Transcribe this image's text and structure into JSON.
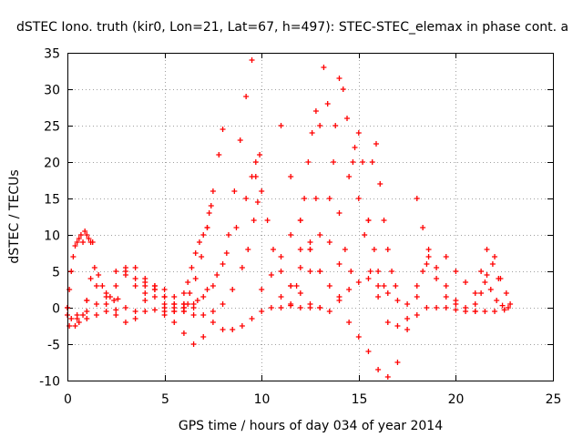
{
  "chart_data": {
    "type": "scatter",
    "title": "dSTEC Iono. truth (kir0, Lon=21, Lat=67, h=497): STEC-STEC_elemax in phase cont. a",
    "xlabel": "GPS time / hours of day 034 of year 2014",
    "ylabel": "dSTEC  / TECUs",
    "xlim": [
      0,
      25
    ],
    "ylim": [
      -10,
      35
    ],
    "xticks": [
      0,
      5,
      10,
      15,
      20,
      25
    ],
    "yticks": [
      -10,
      -5,
      0,
      5,
      10,
      15,
      20,
      25,
      30,
      35
    ],
    "grid": true,
    "marker": "plus",
    "color": "#ff0000",
    "series": [
      {
        "x": [
          0.0,
          0.1,
          0.2,
          0.3,
          0.4,
          0.5,
          0.6,
          0.7,
          0.8,
          0.9,
          1.0,
          1.1,
          1.2,
          1.3
        ],
        "y": [
          0.0,
          2.5,
          5.0,
          7.0,
          8.5,
          9.0,
          9.5,
          10.0,
          9.0,
          10.5,
          10.0,
          9.5,
          9.0,
          9.0
        ]
      },
      {
        "x": [
          0.0,
          0.2,
          0.4,
          0.6,
          0.8,
          1.0,
          1.2,
          1.4,
          1.6,
          1.8,
          2.0,
          2.2,
          2.4,
          2.6
        ],
        "y": [
          0.0,
          -1.5,
          -2.5,
          -2.0,
          -1.0,
          1.0,
          4.0,
          5.5,
          4.5,
          3.0,
          2.0,
          1.5,
          1.0,
          1.2
        ]
      },
      {
        "x": [
          0.1,
          0.5,
          1.0,
          1.5,
          2.0,
          2.5,
          3.0,
          3.5,
          4.0,
          4.5,
          5.0,
          5.5,
          6.0,
          6.5,
          7.0,
          7.5
        ],
        "y": [
          -2.5,
          -1.0,
          1.0,
          3.0,
          1.5,
          -1.0,
          -2.0,
          -1.5,
          1.0,
          2.5,
          0.0,
          -2.0,
          -3.5,
          -5.0,
          -4.0,
          -2.0
        ]
      },
      {
        "x": [
          0.0,
          0.5,
          1.0,
          1.5,
          2.0,
          2.5,
          3.0,
          3.5,
          4.0,
          4.5,
          5.0,
          5.5,
          6.0,
          6.5
        ],
        "y": [
          -1.0,
          -1.5,
          -0.5,
          0.5,
          -0.5,
          -0.3,
          0.0,
          -0.5,
          -0.5,
          -0.3,
          -0.5,
          -0.5,
          0.0,
          0.0
        ]
      },
      {
        "x": [
          1.0,
          1.5,
          2.0,
          2.5,
          3.0,
          3.5,
          4.0,
          4.5,
          5.0,
          5.5,
          6.0,
          6.5
        ],
        "y": [
          -1.5,
          -1.0,
          0.5,
          3.0,
          5.0,
          5.5,
          3.5,
          2.5,
          1.5,
          0.5,
          -0.5,
          -1.0
        ]
      },
      {
        "x": [
          2.5,
          3.0,
          3.5,
          4.0,
          4.5,
          5.0,
          5.5,
          6.0
        ],
        "y": [
          5.0,
          4.5,
          3.0,
          2.0,
          1.5,
          0.5,
          0.0,
          -0.5
        ]
      },
      {
        "x": [
          3.0,
          3.5,
          4.0,
          4.5,
          5.0,
          5.5,
          6.0
        ],
        "y": [
          5.5,
          4.0,
          3.0,
          3.0,
          2.5,
          1.5,
          0.5
        ]
      },
      {
        "x": [
          4.0,
          4.5,
          5.0,
          5.5,
          6.0,
          6.2,
          6.4,
          6.6,
          6.8,
          7.0,
          7.2,
          7.3,
          7.4
        ],
        "y": [
          4.0,
          3.0,
          1.5,
          0.5,
          2.0,
          3.5,
          5.5,
          7.5,
          9.0,
          10.0,
          11.0,
          13.0,
          14.0
        ]
      },
      {
        "x": [
          5.0,
          5.5,
          6.0,
          6.3,
          6.6,
          6.9,
          7.2,
          7.5,
          7.8,
          8.0
        ],
        "y": [
          -1.0,
          -0.5,
          0.5,
          2.0,
          4.0,
          7.0,
          11.0,
          16.0,
          21.0,
          24.5
        ]
      },
      {
        "x": [
          6.0,
          6.5,
          7.0,
          7.5,
          8.0,
          8.3,
          8.6,
          8.9,
          9.2,
          9.5
        ],
        "y": [
          0.0,
          0.5,
          1.5,
          3.0,
          6.0,
          10.0,
          16.0,
          23.0,
          29.0,
          34.0
        ]
      },
      {
        "x": [
          6.2,
          6.7,
          7.2,
          7.7,
          8.2,
          8.7,
          9.2,
          9.5,
          9.7,
          9.9
        ],
        "y": [
          0.5,
          1.0,
          2.5,
          4.5,
          7.5,
          11.0,
          15.0,
          18.0,
          20.0,
          21.0
        ]
      },
      {
        "x": [
          7.0,
          7.5,
          8.0,
          8.5,
          9.0,
          9.3,
          9.6,
          9.8
        ],
        "y": [
          -1.0,
          -0.5,
          0.5,
          2.5,
          5.5,
          8.0,
          12.0,
          14.5
        ]
      },
      {
        "x": [
          8.0,
          8.5,
          9.0,
          9.5,
          10.0,
          10.5,
          11.0,
          11.5,
          12.0,
          12.5,
          13.0,
          13.5
        ],
        "y": [
          -3.0,
          -3.0,
          -2.5,
          -1.5,
          -0.5,
          0.0,
          0.0,
          0.3,
          0.0,
          0.0,
          0.0,
          -0.5
        ]
      },
      {
        "x": [
          9.7,
          10.0,
          10.3,
          10.6,
          11.0,
          11.5,
          12.0,
          12.5,
          13.0
        ],
        "y": [
          18.0,
          16.0,
          12.0,
          8.0,
          5.0,
          3.0,
          2.0,
          0.5,
          0.0
        ]
      },
      {
        "x": [
          10.0,
          10.5,
          11.0,
          11.5,
          12.0,
          12.5,
          13.0
        ],
        "y": [
          2.5,
          4.5,
          7.0,
          10.0,
          12.0,
          9.0,
          5.0
        ]
      },
      {
        "x": [
          11.0,
          11.5,
          12.0,
          12.5,
          13.0,
          13.5,
          14.0
        ],
        "y": [
          25.0,
          18.0,
          12.0,
          8.0,
          5.0,
          3.0,
          1.5
        ]
      },
      {
        "x": [
          11.5,
          11.8,
          12.0,
          12.2,
          12.4,
          12.6,
          12.8
        ],
        "y": [
          0.5,
          3.0,
          8.0,
          15.0,
          20.0,
          24.0,
          27.0
        ]
      },
      {
        "x": [
          11.0,
          11.5,
          12.0,
          12.5,
          13.0,
          13.5,
          14.0
        ],
        "y": [
          1.5,
          3.0,
          5.5,
          8.0,
          10.0,
          9.0,
          6.0
        ]
      },
      {
        "x": [
          12.5,
          12.8,
          13.0,
          13.2,
          13.4,
          13.7,
          14.0,
          14.3,
          14.6
        ],
        "y": [
          5.0,
          15.0,
          25.0,
          33.0,
          28.0,
          20.0,
          13.0,
          8.0,
          5.0
        ]
      },
      {
        "x": [
          13.5,
          13.8,
          14.0,
          14.2,
          14.4,
          14.7,
          15.0,
          15.3,
          15.6,
          16.0
        ],
        "y": [
          15.0,
          25.0,
          31.5,
          30.0,
          26.0,
          20.0,
          15.0,
          10.0,
          5.0,
          1.5
        ]
      },
      {
        "x": [
          14.5,
          14.8,
          15.0,
          15.2,
          15.5,
          15.8,
          16.0,
          16.3
        ],
        "y": [
          18.0,
          22.0,
          24.0,
          20.0,
          12.0,
          8.0,
          5.0,
          3.0
        ]
      },
      {
        "x": [
          15.5,
          15.7,
          15.9,
          16.1,
          16.3,
          16.5,
          16.7,
          16.9
        ],
        "y": [
          12.0,
          20.0,
          22.5,
          17.0,
          12.0,
          8.0,
          5.0,
          3.0
        ]
      },
      {
        "x": [
          14.0,
          14.5,
          15.0,
          15.5,
          16.0,
          16.5,
          17.0,
          17.5,
          18.0,
          18.5
        ],
        "y": [
          1.0,
          2.5,
          3.5,
          4.0,
          3.0,
          2.0,
          1.0,
          0.5,
          1.5,
          6.0
        ]
      },
      {
        "x": [
          14.5,
          15.0,
          15.5,
          16.0,
          16.5,
          17.0,
          17.5,
          18.0,
          18.5
        ],
        "y": [
          -2.0,
          -4.0,
          -6.0,
          -8.5,
          -9.5,
          -7.5,
          -3.0,
          -1.0,
          0.0
        ]
      },
      {
        "x": [
          16.5,
          17.0,
          17.5,
          18.0,
          18.3,
          18.6,
          19.0,
          19.5,
          20.0
        ],
        "y": [
          -2.0,
          -2.5,
          -1.5,
          3.0,
          5.0,
          7.0,
          4.0,
          1.5,
          0.5
        ]
      },
      {
        "x": [
          18.0,
          18.3,
          18.6,
          19.0,
          19.5,
          20.0,
          20.5,
          21.0
        ],
        "y": [
          15.0,
          11.0,
          8.0,
          5.5,
          3.0,
          1.0,
          0.0,
          -0.5
        ]
      },
      {
        "x": [
          19.0,
          19.5,
          20.0,
          20.5,
          21.0,
          21.5,
          22.0,
          22.5
        ],
        "y": [
          0.0,
          0.0,
          -0.3,
          -0.5,
          -0.5,
          -0.5,
          -0.5,
          -0.3
        ]
      },
      {
        "x": [
          19.5,
          20.0,
          20.5,
          21.0,
          21.3,
          21.6,
          21.9,
          22.2
        ],
        "y": [
          7.0,
          5.0,
          3.5,
          2.0,
          5.0,
          8.0,
          6.0,
          4.0
        ]
      },
      {
        "x": [
          21.0,
          21.3,
          21.6,
          22.0,
          22.3,
          22.6,
          22.8
        ],
        "y": [
          0.5,
          2.0,
          4.5,
          7.0,
          4.0,
          2.0,
          0.5
        ]
      },
      {
        "x": [
          21.5,
          21.8,
          22.1,
          22.4,
          22.7
        ],
        "y": [
          3.5,
          2.5,
          1.0,
          0.3,
          0.0
        ]
      }
    ]
  }
}
